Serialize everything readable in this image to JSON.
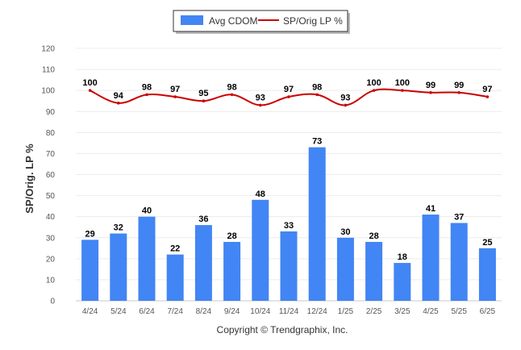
{
  "chart_data": {
    "type": "bar",
    "categories": [
      "4/24",
      "5/24",
      "6/24",
      "7/24",
      "8/24",
      "9/24",
      "10/24",
      "11/24",
      "12/24",
      "1/25",
      "2/25",
      "3/25",
      "4/25",
      "5/25",
      "6/25"
    ],
    "series": [
      {
        "name": "Avg CDOM",
        "type": "bar",
        "color": "#4285f4",
        "values": [
          29,
          32,
          40,
          22,
          36,
          28,
          48,
          33,
          73,
          30,
          28,
          18,
          41,
          37,
          25
        ]
      },
      {
        "name": "SP/Orig LP %",
        "type": "line",
        "color": "#cc0000",
        "values": [
          100,
          94,
          98,
          97,
          95,
          98,
          93,
          97,
          98,
          93,
          100,
          100,
          99,
          99,
          97
        ]
      }
    ],
    "ylabel": "SP/Orig. LP %",
    "ylim": [
      0,
      120
    ],
    "yticks": [
      0,
      10,
      20,
      30,
      40,
      50,
      60,
      70,
      80,
      90,
      100,
      110,
      120
    ],
    "grid": true,
    "legend": "top-center",
    "footer": "Copyright © Trendgraphix, Inc."
  }
}
